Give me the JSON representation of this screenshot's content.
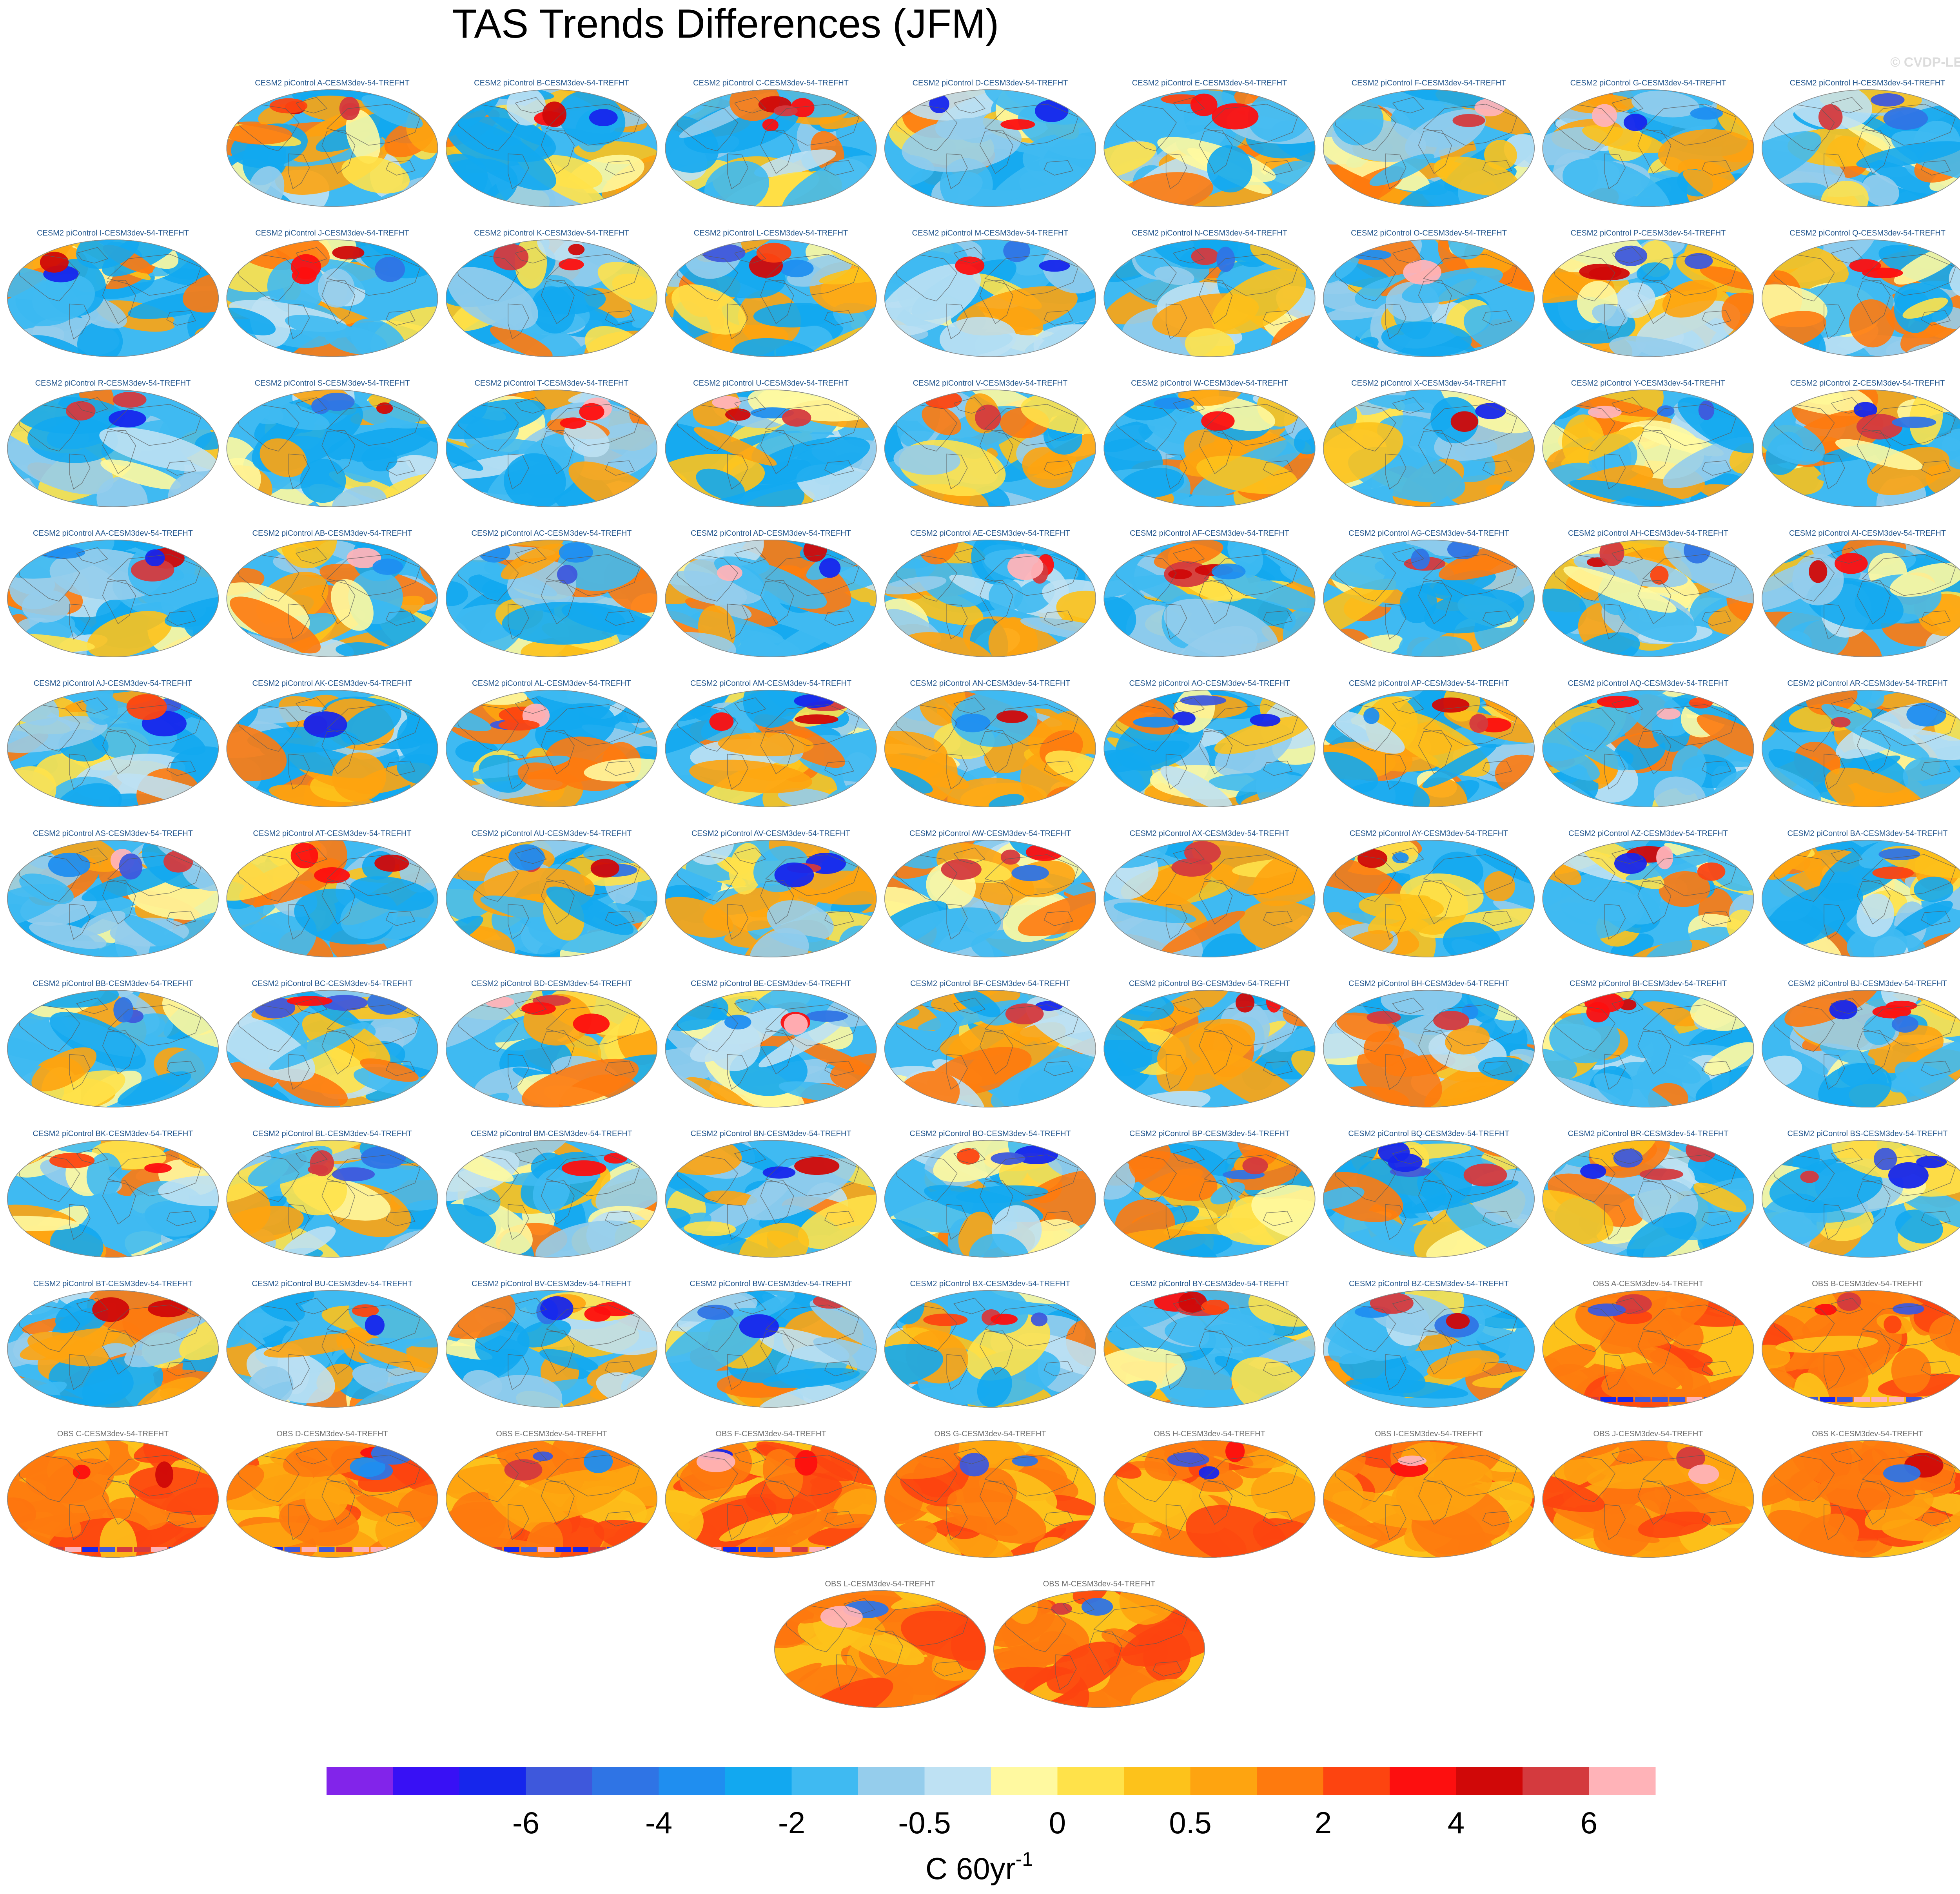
{
  "title": "TAS Trends Differences (JFM)",
  "copyright": "© CVDP-LE",
  "colorbar": {
    "tick_labels": [
      "-6",
      "-4",
      "-2",
      "-0.5",
      "0",
      "0.5",
      "2",
      "4",
      "6"
    ],
    "unit_base": "C 60yr",
    "unit_superscript": "-1",
    "colors": [
      "#8224ea",
      "#3810f5",
      "#1626ec",
      "#3e58dc",
      "#2f74e5",
      "#1f8ef0",
      "#12a8f0",
      "#3fbaf2",
      "#95cdec",
      "#bee1f3",
      "#fff9a0",
      "#ffe24a",
      "#fdc21b",
      "#fea410",
      "#fe7a0e",
      "#fd4410",
      "#fd0f0f",
      "#d00808",
      "#d43a3e",
      "#ffb3b8"
    ]
  },
  "chart_data": {
    "type": "heatmap",
    "title": "TAS Trends Differences (JFM)",
    "variable": "TAS",
    "season": "JFM",
    "unit": "C 60yr-1",
    "contour_levels": [
      -8,
      -7,
      -6,
      -5,
      -4,
      -3,
      -2,
      -1,
      -0.5,
      -0.25,
      0,
      0.25,
      0.5,
      1,
      2,
      3,
      4,
      5,
      6,
      7
    ],
    "tick_levels": [
      -6,
      -4,
      -2,
      -0.5,
      0,
      0.5,
      2,
      4,
      6
    ],
    "panels": [
      {
        "label": "CESM2 piControl A-CESM3dev-54-TREFHT",
        "group": "piControl"
      },
      {
        "label": "CESM2 piControl B-CESM3dev-54-TREFHT",
        "group": "piControl"
      },
      {
        "label": "CESM2 piControl C-CESM3dev-54-TREFHT",
        "group": "piControl"
      },
      {
        "label": "CESM2 piControl D-CESM3dev-54-TREFHT",
        "group": "piControl"
      },
      {
        "label": "CESM2 piControl E-CESM3dev-54-TREFHT",
        "group": "piControl"
      },
      {
        "label": "CESM2 piControl F-CESM3dev-54-TREFHT",
        "group": "piControl"
      },
      {
        "label": "CESM2 piControl G-CESM3dev-54-TREFHT",
        "group": "piControl"
      },
      {
        "label": "CESM2 piControl H-CESM3dev-54-TREFHT",
        "group": "piControl"
      },
      {
        "label": "CESM2 piControl I-CESM3dev-54-TREFHT",
        "group": "piControl"
      },
      {
        "label": "CESM2 piControl J-CESM3dev-54-TREFHT",
        "group": "piControl"
      },
      {
        "label": "CESM2 piControl K-CESM3dev-54-TREFHT",
        "group": "piControl"
      },
      {
        "label": "CESM2 piControl L-CESM3dev-54-TREFHT",
        "group": "piControl"
      },
      {
        "label": "CESM2 piControl M-CESM3dev-54-TREFHT",
        "group": "piControl"
      },
      {
        "label": "CESM2 piControl N-CESM3dev-54-TREFHT",
        "group": "piControl"
      },
      {
        "label": "CESM2 piControl O-CESM3dev-54-TREFHT",
        "group": "piControl"
      },
      {
        "label": "CESM2 piControl P-CESM3dev-54-TREFHT",
        "group": "piControl"
      },
      {
        "label": "CESM2 piControl Q-CESM3dev-54-TREFHT",
        "group": "piControl"
      },
      {
        "label": "CESM2 piControl R-CESM3dev-54-TREFHT",
        "group": "piControl"
      },
      {
        "label": "CESM2 piControl S-CESM3dev-54-TREFHT",
        "group": "piControl"
      },
      {
        "label": "CESM2 piControl T-CESM3dev-54-TREFHT",
        "group": "piControl"
      },
      {
        "label": "CESM2 piControl U-CESM3dev-54-TREFHT",
        "group": "piControl"
      },
      {
        "label": "CESM2 piControl V-CESM3dev-54-TREFHT",
        "group": "piControl"
      },
      {
        "label": "CESM2 piControl W-CESM3dev-54-TREFHT",
        "group": "piControl"
      },
      {
        "label": "CESM2 piControl X-CESM3dev-54-TREFHT",
        "group": "piControl"
      },
      {
        "label": "CESM2 piControl Y-CESM3dev-54-TREFHT",
        "group": "piControl"
      },
      {
        "label": "CESM2 piControl Z-CESM3dev-54-TREFHT",
        "group": "piControl"
      },
      {
        "label": "CESM2 piControl AA-CESM3dev-54-TREFHT",
        "group": "piControl"
      },
      {
        "label": "CESM2 piControl AB-CESM3dev-54-TREFHT",
        "group": "piControl"
      },
      {
        "label": "CESM2 piControl AC-CESM3dev-54-TREFHT",
        "group": "piControl"
      },
      {
        "label": "CESM2 piControl AD-CESM3dev-54-TREFHT",
        "group": "piControl"
      },
      {
        "label": "CESM2 piControl AE-CESM3dev-54-TREFHT",
        "group": "piControl"
      },
      {
        "label": "CESM2 piControl AF-CESM3dev-54-TREFHT",
        "group": "piControl"
      },
      {
        "label": "CESM2 piControl AG-CESM3dev-54-TREFHT",
        "group": "piControl"
      },
      {
        "label": "CESM2 piControl AH-CESM3dev-54-TREFHT",
        "group": "piControl"
      },
      {
        "label": "CESM2 piControl AI-CESM3dev-54-TREFHT",
        "group": "piControl"
      },
      {
        "label": "CESM2 piControl AJ-CESM3dev-54-TREFHT",
        "group": "piControl"
      },
      {
        "label": "CESM2 piControl AK-CESM3dev-54-TREFHT",
        "group": "piControl"
      },
      {
        "label": "CESM2 piControl AL-CESM3dev-54-TREFHT",
        "group": "piControl"
      },
      {
        "label": "CESM2 piControl AM-CESM3dev-54-TREFHT",
        "group": "piControl"
      },
      {
        "label": "CESM2 piControl AN-CESM3dev-54-TREFHT",
        "group": "piControl"
      },
      {
        "label": "CESM2 piControl AO-CESM3dev-54-TREFHT",
        "group": "piControl"
      },
      {
        "label": "CESM2 piControl AP-CESM3dev-54-TREFHT",
        "group": "piControl"
      },
      {
        "label": "CESM2 piControl AQ-CESM3dev-54-TREFHT",
        "group": "piControl"
      },
      {
        "label": "CESM2 piControl AR-CESM3dev-54-TREFHT",
        "group": "piControl"
      },
      {
        "label": "CESM2 piControl AS-CESM3dev-54-TREFHT",
        "group": "piControl"
      },
      {
        "label": "CESM2 piControl AT-CESM3dev-54-TREFHT",
        "group": "piControl"
      },
      {
        "label": "CESM2 piControl AU-CESM3dev-54-TREFHT",
        "group": "piControl"
      },
      {
        "label": "CESM2 piControl AV-CESM3dev-54-TREFHT",
        "group": "piControl"
      },
      {
        "label": "CESM2 piControl AW-CESM3dev-54-TREFHT",
        "group": "piControl"
      },
      {
        "label": "CESM2 piControl AX-CESM3dev-54-TREFHT",
        "group": "piControl"
      },
      {
        "label": "CESM2 piControl AY-CESM3dev-54-TREFHT",
        "group": "piControl"
      },
      {
        "label": "CESM2 piControl AZ-CESM3dev-54-TREFHT",
        "group": "piControl"
      },
      {
        "label": "CESM2 piControl BA-CESM3dev-54-TREFHT",
        "group": "piControl"
      },
      {
        "label": "CESM2 piControl BB-CESM3dev-54-TREFHT",
        "group": "piControl"
      },
      {
        "label": "CESM2 piControl BC-CESM3dev-54-TREFHT",
        "group": "piControl"
      },
      {
        "label": "CESM2 piControl BD-CESM3dev-54-TREFHT",
        "group": "piControl"
      },
      {
        "label": "CESM2 piControl BE-CESM3dev-54-TREFHT",
        "group": "piControl"
      },
      {
        "label": "CESM2 piControl BF-CESM3dev-54-TREFHT",
        "group": "piControl"
      },
      {
        "label": "CESM2 piControl BG-CESM3dev-54-TREFHT",
        "group": "piControl"
      },
      {
        "label": "CESM2 piControl BH-CESM3dev-54-TREFHT",
        "group": "piControl"
      },
      {
        "label": "CESM2 piControl BI-CESM3dev-54-TREFHT",
        "group": "piControl"
      },
      {
        "label": "CESM2 piControl BJ-CESM3dev-54-TREFHT",
        "group": "piControl"
      },
      {
        "label": "CESM2 piControl BK-CESM3dev-54-TREFHT",
        "group": "piControl"
      },
      {
        "label": "CESM2 piControl BL-CESM3dev-54-TREFHT",
        "group": "piControl"
      },
      {
        "label": "CESM2 piControl BM-CESM3dev-54-TREFHT",
        "group": "piControl"
      },
      {
        "label": "CESM2 piControl BN-CESM3dev-54-TREFHT",
        "group": "piControl"
      },
      {
        "label": "CESM2 piControl BO-CESM3dev-54-TREFHT",
        "group": "piControl"
      },
      {
        "label": "CESM2 piControl BP-CESM3dev-54-TREFHT",
        "group": "piControl"
      },
      {
        "label": "CESM2 piControl BQ-CESM3dev-54-TREFHT",
        "group": "piControl"
      },
      {
        "label": "CESM2 piControl BR-CESM3dev-54-TREFHT",
        "group": "piControl"
      },
      {
        "label": "CESM2 piControl BS-CESM3dev-54-TREFHT",
        "group": "piControl"
      },
      {
        "label": "CESM2 piControl BT-CESM3dev-54-TREFHT",
        "group": "piControl"
      },
      {
        "label": "CESM2 piControl BU-CESM3dev-54-TREFHT",
        "group": "piControl"
      },
      {
        "label": "CESM2 piControl BV-CESM3dev-54-TREFHT",
        "group": "piControl"
      },
      {
        "label": "CESM2 piControl BW-CESM3dev-54-TREFHT",
        "group": "piControl"
      },
      {
        "label": "CESM2 piControl BX-CESM3dev-54-TREFHT",
        "group": "piControl"
      },
      {
        "label": "CESM2 piControl BY-CESM3dev-54-TREFHT",
        "group": "piControl"
      },
      {
        "label": "CESM2 piControl BZ-CESM3dev-54-TREFHT",
        "group": "piControl"
      },
      {
        "label": "OBS A-CESM3dev-54-TREFHT",
        "group": "OBS"
      },
      {
        "label": "OBS B-CESM3dev-54-TREFHT",
        "group": "OBS"
      },
      {
        "label": "OBS C-CESM3dev-54-TREFHT",
        "group": "OBS"
      },
      {
        "label": "OBS D-CESM3dev-54-TREFHT",
        "group": "OBS"
      },
      {
        "label": "OBS E-CESM3dev-54-TREFHT",
        "group": "OBS"
      },
      {
        "label": "OBS F-CESM3dev-54-TREFHT",
        "group": "OBS"
      },
      {
        "label": "OBS G-CESM3dev-54-TREFHT",
        "group": "OBS"
      },
      {
        "label": "OBS H-CESM3dev-54-TREFHT",
        "group": "OBS"
      },
      {
        "label": "OBS I-CESM3dev-54-TREFHT",
        "group": "OBS"
      },
      {
        "label": "OBS J-CESM3dev-54-TREFHT",
        "group": "OBS"
      },
      {
        "label": "OBS K-CESM3dev-54-TREFHT",
        "group": "OBS"
      },
      {
        "label": "OBS L-CESM3dev-54-TREFHT",
        "group": "OBS"
      },
      {
        "label": "OBS M-CESM3dev-54-TREFHT",
        "group": "OBS"
      }
    ]
  }
}
